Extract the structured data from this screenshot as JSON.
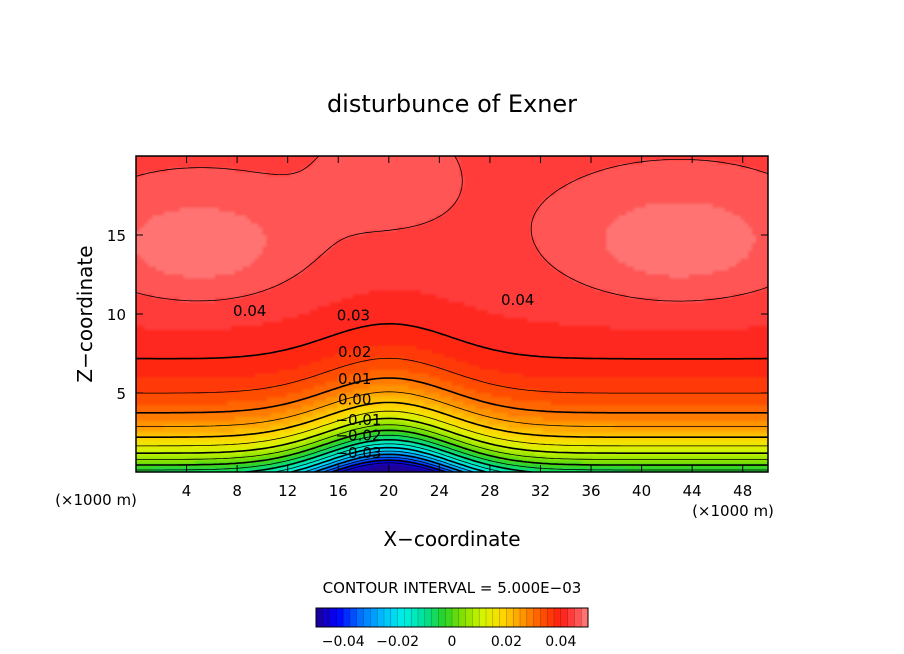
{
  "chart_data": {
    "type": "heatmap",
    "title": "disturbunce of Exner",
    "xlabel": "X−coordinate",
    "ylabel": "Z−coordinate",
    "x_unit_left": "(×1000 m)",
    "x_unit_right": "(×1000 m)",
    "xlim": [
      0,
      50
    ],
    "ylim": [
      0,
      20
    ],
    "x_ticks": [
      4,
      8,
      12,
      16,
      20,
      24,
      28,
      32,
      36,
      40,
      44,
      48
    ],
    "y_ticks": [
      5,
      10,
      15
    ],
    "x_tick_labels": [
      "4",
      "8",
      "12",
      "16",
      "20",
      "24",
      "28",
      "32",
      "36",
      "40",
      "44",
      "48"
    ],
    "y_tick_labels": [
      "5",
      "10",
      "15"
    ],
    "contour_labels": [
      {
        "text": "0.04",
        "x": 9,
        "y": 10.2
      },
      {
        "text": "0.04",
        "x": 30.2,
        "y": 10.9
      },
      {
        "text": "0.03",
        "x": 17.2,
        "y": 9.9
      },
      {
        "text": "0.02",
        "x": 17.3,
        "y": 7.6
      },
      {
        "text": "0.01",
        "x": 17.3,
        "y": 5.9
      },
      {
        "text": "0.00",
        "x": 17.3,
        "y": 4.6
      },
      {
        "text": "−0.01",
        "x": 17.6,
        "y": 3.3
      },
      {
        "text": "−0.02",
        "x": 17.6,
        "y": 2.3
      },
      {
        "text": "−0.03",
        "x": 17.6,
        "y": 1.2
      }
    ],
    "contour_interval_text": "CONTOUR INTERVAL = 5.000E−03",
    "colorbar": {
      "range": [
        -0.05,
        0.05
      ],
      "tick_values": [
        -0.04,
        -0.02,
        0,
        0.02,
        0.04
      ],
      "tick_labels": [
        "−0.04",
        "−0.02",
        "0",
        "0.02",
        "0.04"
      ]
    },
    "field_description": {
      "min": -0.045,
      "max": 0.048,
      "high_centers": [
        {
          "x": 5,
          "y": 14.3
        },
        {
          "x": 43,
          "y": 14.5
        }
      ],
      "saddle": {
        "x": 20,
        "y": 13
      }
    }
  }
}
